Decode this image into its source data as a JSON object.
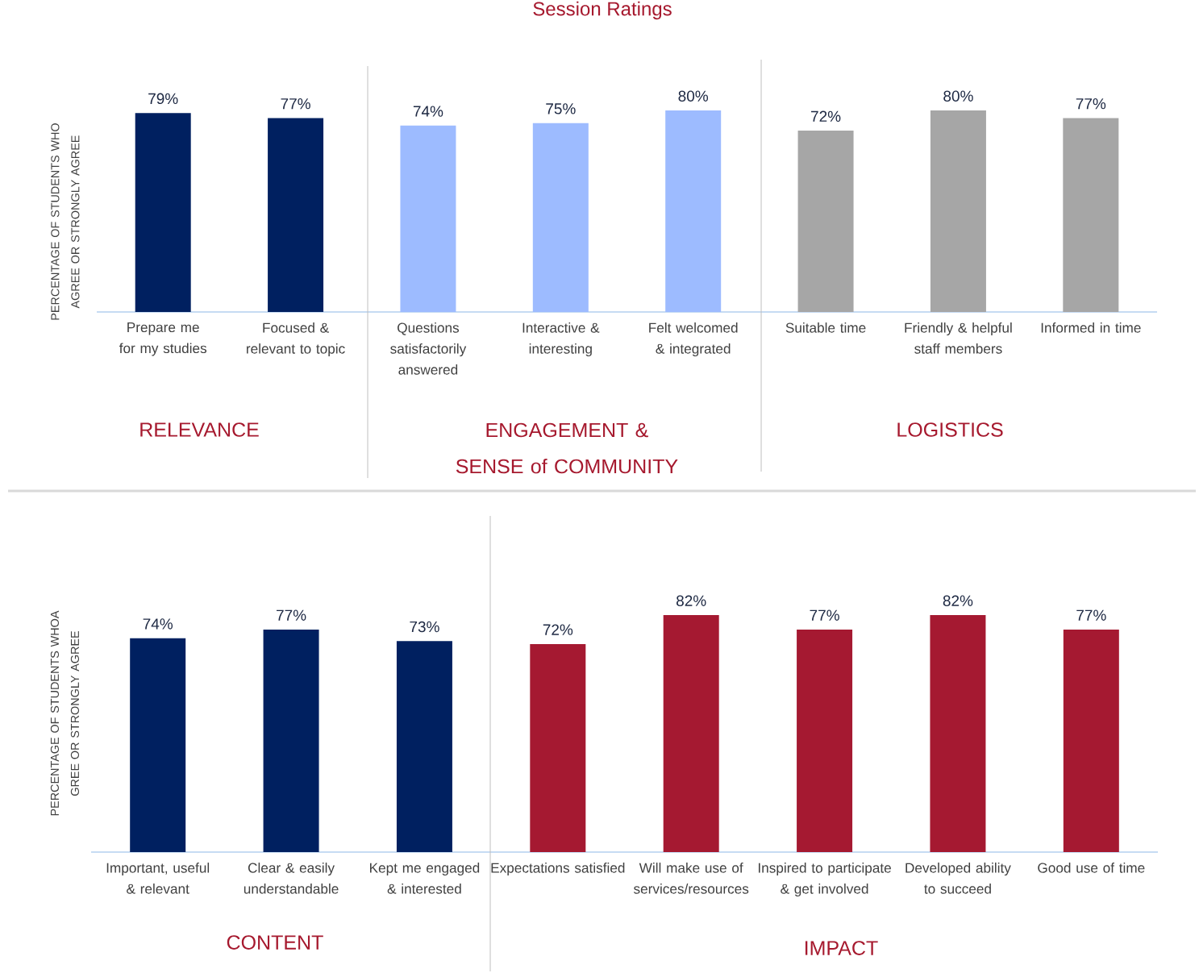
{
  "chart_data": [
    {
      "type": "bar",
      "title": "Session Ratings",
      "ylabel": "PERCENTAGE OF STUDENTS WHO AGREE OR STRONGLY AGREE",
      "categories": [
        "Prepare me for my studies",
        "Focused & relevant to topic",
        "Questions satisfactorily answered",
        "Interactive & interesting",
        "Felt welcomed & integrated",
        "Suitable time",
        "Friendly & helpful staff members",
        "Informed in time"
      ],
      "values": [
        79,
        77,
        74,
        75,
        80,
        72,
        80,
        77
      ],
      "value_labels": [
        "79%",
        "77%",
        "74%",
        "75%",
        "80%",
        "72%",
        "80%",
        "77%"
      ],
      "colors": [
        "#002060",
        "#002060",
        "#9dbbff",
        "#9dbbff",
        "#9dbbff",
        "#a6a6a6",
        "#a6a6a6",
        "#a6a6a6"
      ],
      "tick_labels": "x",
      "annotations": [
        "RELEVANCE",
        "ENGAGEMENT & SENSE of COMMUNITY",
        "LOGISTICS"
      ]
    },
    {
      "type": "bar",
      "ylabel": "PERCENTAGE OF STUDENTS WHOA GREE OR STRONGLY AGREE",
      "categories": [
        "Important, useful & relevant",
        "Clear & easily understandable",
        "Kept me engaged & interested",
        "Expectations satisfied",
        "Will make use of services/resources",
        "Inspired to participate & get involved",
        "Developed ability to succeed",
        "Good use of time"
      ],
      "values": [
        74,
        77,
        73,
        72,
        82,
        77,
        82,
        77
      ],
      "value_labels": [
        "74%",
        "77%",
        "73%",
        "72%",
        "82%",
        "77%",
        "82%",
        "77%"
      ],
      "colors": [
        "#002060",
        "#002060",
        "#002060",
        "#a51931",
        "#a51931",
        "#a51931",
        "#a51931",
        "#a51931"
      ],
      "tick_labels": "x",
      "annotations": [
        "CONTENT",
        "IMPACT"
      ]
    }
  ]
}
